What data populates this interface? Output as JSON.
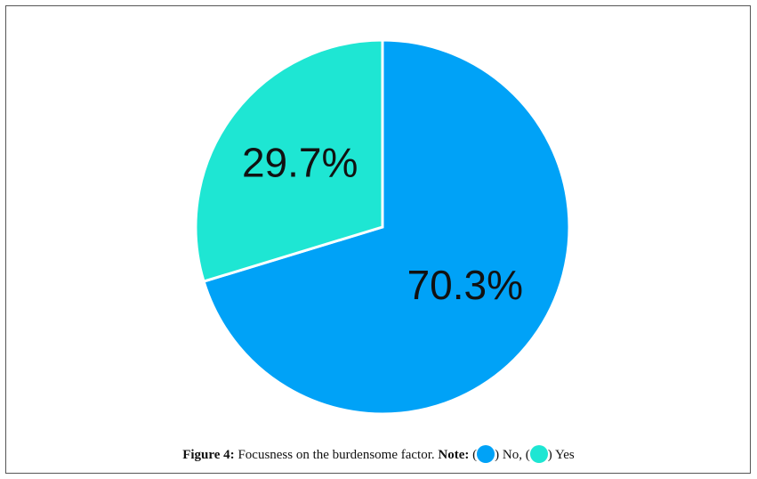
{
  "chart_data": {
    "type": "pie",
    "categories": [
      "No",
      "Yes"
    ],
    "values": [
      70.3,
      29.7
    ],
    "value_labels": [
      "70.3%",
      "29.7%"
    ],
    "colors": [
      "#00a2f7",
      "#1ee6d3"
    ],
    "caption_label": "Figure 4:",
    "caption": "Focusness on the burdensome factor.",
    "note_label": "Note:",
    "legend_brackets": [
      "(",
      ")"
    ],
    "legend_separator": ","
  }
}
